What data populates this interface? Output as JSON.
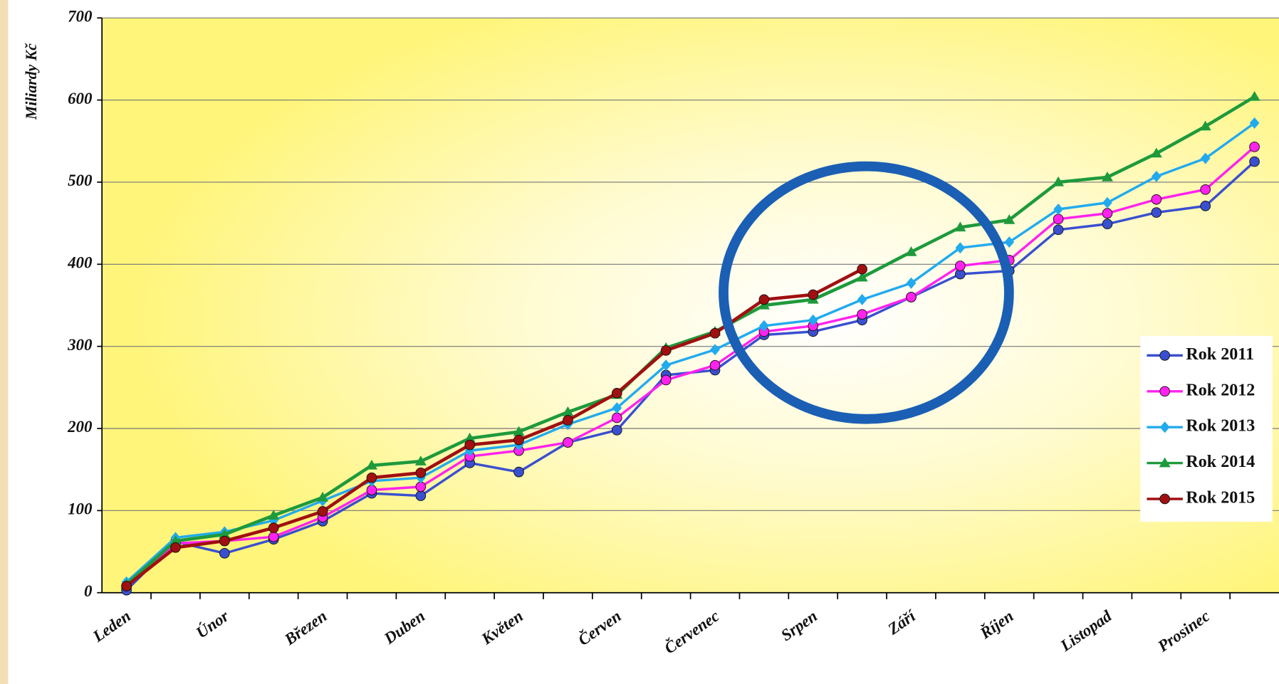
{
  "chart_data": {
    "type": "line",
    "y_label": "Miliardy Kč",
    "categories": [
      "Leden",
      null,
      "Únor",
      null,
      "Březen",
      null,
      "Duben",
      null,
      "Květen",
      null,
      "Červen",
      null,
      "Červenec",
      null,
      "Srpen",
      null,
      "Září",
      null,
      "Říjen",
      null,
      "Listopad",
      null,
      "Prosinec",
      null
    ],
    "ylim": [
      0,
      700
    ],
    "yticks": [
      0,
      100,
      200,
      300,
      400,
      500,
      600,
      700
    ],
    "grid": true,
    "legend": "lower right",
    "series": [
      {
        "name": "Rok 2011",
        "color": "#3a4fd0",
        "marker": "circle",
        "values": [
          3,
          62,
          48,
          65,
          87,
          121,
          118,
          158,
          147,
          183,
          198,
          265,
          271,
          314,
          318,
          332,
          360,
          388,
          392,
          442,
          449,
          463,
          471,
          525
        ]
      },
      {
        "name": "Rok 2012",
        "color": "#ff22ee",
        "marker": "circle",
        "values": [
          8,
          60,
          63,
          68,
          92,
          125,
          129,
          166,
          173,
          183,
          213,
          259,
          277,
          318,
          325,
          339,
          360,
          398,
          405,
          455,
          462,
          479,
          491,
          543
        ]
      },
      {
        "name": "Rok 2013",
        "color": "#22aaee",
        "marker": "diamond",
        "values": [
          13,
          67,
          74,
          88,
          112,
          136,
          140,
          173,
          180,
          205,
          225,
          277,
          296,
          325,
          332,
          357,
          377,
          420,
          427,
          467,
          475,
          507,
          529,
          572
        ]
      },
      {
        "name": "Rok 2014",
        "color": "#1e9a3c",
        "marker": "triangle",
        "values": [
          10,
          63,
          71,
          94,
          116,
          155,
          160,
          188,
          196,
          220,
          241,
          298,
          318,
          350,
          357,
          384,
          415,
          445,
          454,
          500,
          506,
          535,
          568,
          604
        ]
      },
      {
        "name": "Rok 2015",
        "color": "#a01010",
        "marker": "circle",
        "values": [
          8,
          55,
          63,
          79,
          99,
          140,
          146,
          180,
          186,
          210,
          243,
          295,
          316,
          357,
          363,
          394,
          null,
          null,
          null,
          null,
          null,
          null,
          null,
          null
        ]
      }
    ]
  }
}
